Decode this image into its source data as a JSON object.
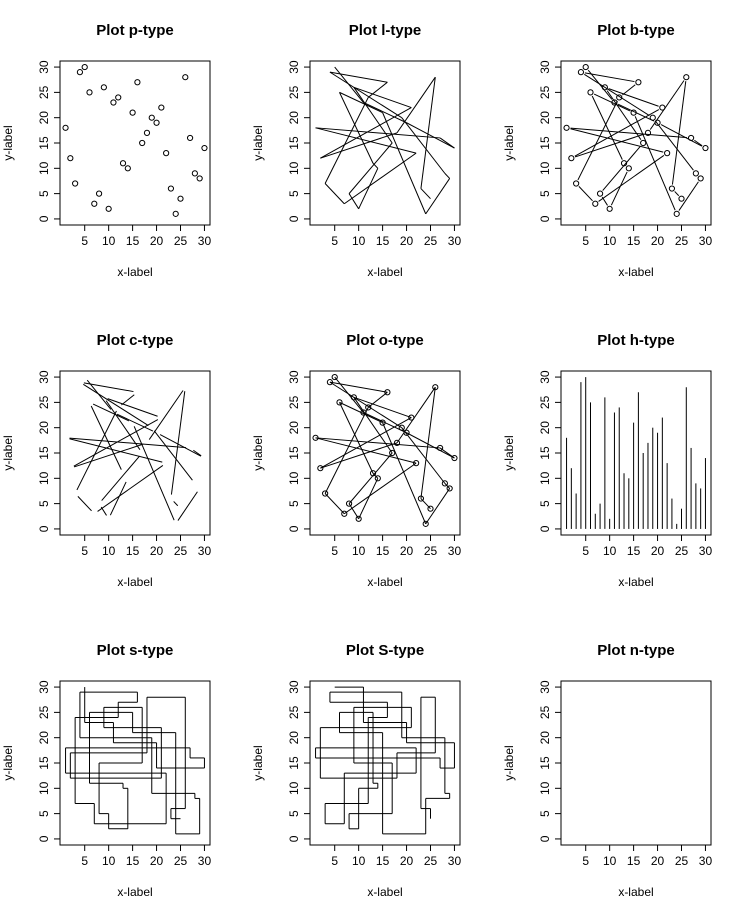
{
  "chart_data": {
    "type": "line",
    "layout": "3x3 grid of panels",
    "shared_data": {
      "x": [
        25,
        23,
        26,
        18,
        2,
        21,
        9,
        17,
        8,
        10,
        14,
        13,
        6,
        15,
        24,
        29,
        28,
        19,
        4,
        16,
        12,
        3,
        7,
        22,
        1,
        27,
        30,
        20,
        11,
        5
      ],
      "y": [
        4,
        6,
        28,
        17,
        12,
        22,
        26,
        15,
        5,
        2,
        10,
        11,
        25,
        21,
        1,
        8,
        9,
        20,
        29,
        27,
        24,
        7,
        3,
        13,
        18,
        16,
        14,
        19,
        23,
        30
      ]
    },
    "xlim": [
      1,
      30
    ],
    "ylim": [
      0,
      30
    ],
    "xticks": [
      5,
      10,
      15,
      20,
      25,
      30
    ],
    "yticks": [
      0,
      5,
      10,
      15,
      20,
      25,
      30
    ],
    "xlabel": "x-label",
    "ylabel": "y-label",
    "panels": [
      {
        "title": "Plot p-type",
        "plot_type": "p"
      },
      {
        "title": "Plot l-type",
        "plot_type": "l"
      },
      {
        "title": "Plot b-type",
        "plot_type": "b"
      },
      {
        "title": "Plot c-type",
        "plot_type": "c"
      },
      {
        "title": "Plot o-type",
        "plot_type": "o"
      },
      {
        "title": "Plot h-type",
        "plot_type": "h"
      },
      {
        "title": "Plot s-type",
        "plot_type": "s"
      },
      {
        "title": "Plot S-type",
        "plot_type": "S"
      },
      {
        "title": "Plot n-type",
        "plot_type": "n"
      }
    ]
  }
}
